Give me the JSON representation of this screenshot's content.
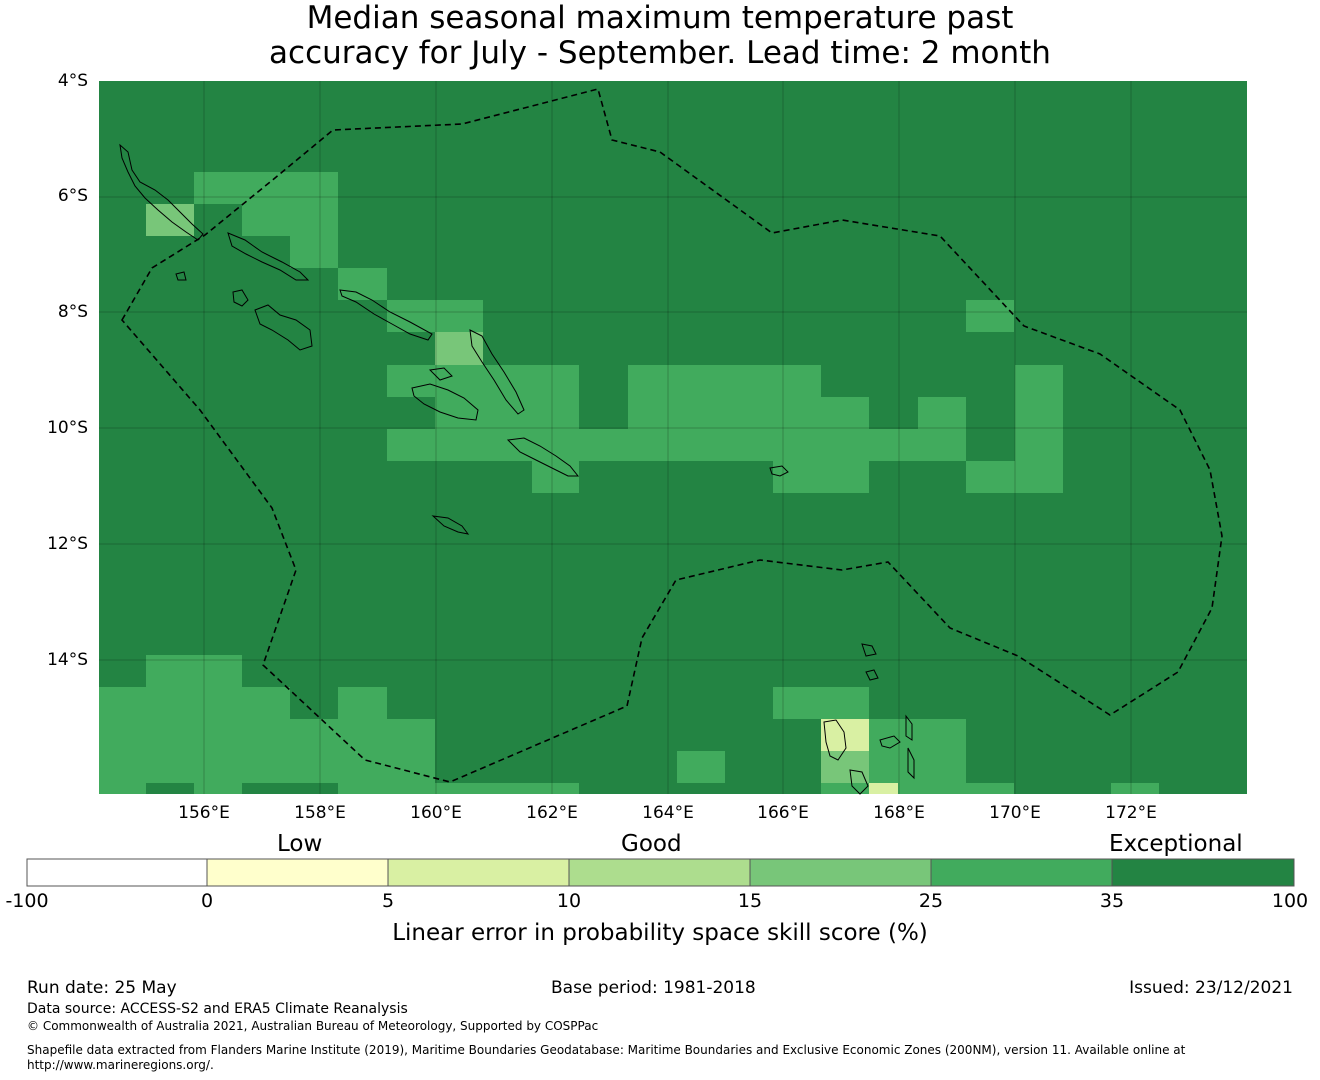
{
  "title": {
    "line1": "Median seasonal maximum temperature past",
    "line2": "accuracy for July - September. Lead time: 2 month"
  },
  "map": {
    "lat_labels": [
      "4°S",
      "6°S",
      "8°S",
      "10°S",
      "12°S",
      "14°S"
    ],
    "lon_labels": [
      "156°E",
      "158°E",
      "160°E",
      "162°E",
      "164°E",
      "166°E",
      "168°E",
      "170°E",
      "172°E"
    ],
    "extent": {
      "lon_min": 154.2,
      "lon_max": 174.0,
      "lat_min": -16.3,
      "lat_max": -4.0
    },
    "regions": "Solomon Islands and Vanuatu (Maritime Boundaries, EEZ 200NM dashed)"
  },
  "legend": {
    "categories": [
      "Low",
      "Good",
      "Exceptional"
    ],
    "ticks": [
      "-100",
      "0",
      "5",
      "10",
      "15",
      "25",
      "35",
      "100"
    ],
    "bins": [
      {
        "from": -100,
        "to": 0,
        "color": "#ffffff"
      },
      {
        "from": 0,
        "to": 5,
        "color": "#ffffcc"
      },
      {
        "from": 5,
        "to": 10,
        "color": "#d9f0a3"
      },
      {
        "from": 10,
        "to": 15,
        "color": "#addd8e"
      },
      {
        "from": 15,
        "to": 25,
        "color": "#78c679"
      },
      {
        "from": 25,
        "to": 35,
        "color": "#41ab5d"
      },
      {
        "from": 35,
        "to": 100,
        "color": "#238443"
      }
    ],
    "label": "Linear error in probability space skill score (%)"
  },
  "footer": {
    "run_date": "Run date: 25 May",
    "base_period": "Base period: 1981-2018",
    "issued": "Issued: 23/12/2021",
    "data_source": "Data source: ACCESS-S2 and ERA5 Climate Reanalysis",
    "copyright": "© Commonwealth of Australia 2021, Australian Bureau of Meteorology, Supported by COSPPac",
    "shapefile_1": "Shapefile data extracted from Flanders Marine Institute (2019), Maritime Boundaries Geodatabase: Maritime Boundaries and Exclusive Economic Zones (200NM), version 11. Available online at",
    "shapefile_2": "http://www.marineregions.org/."
  }
}
